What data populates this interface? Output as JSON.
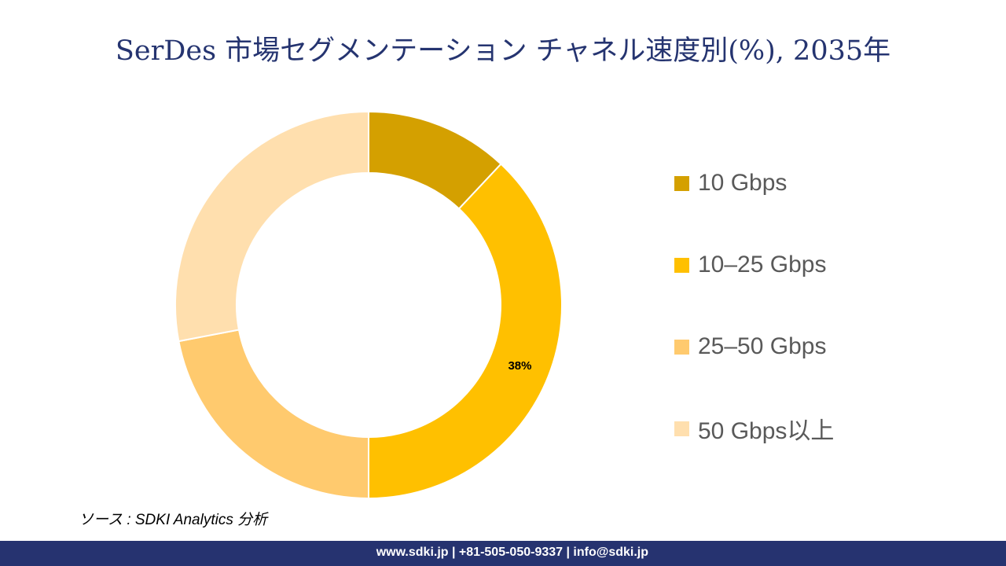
{
  "title": "SerDes 市場セグメンテーション チャネル速度別(%), 2035年",
  "chart_data": {
    "type": "pie",
    "donut": true,
    "title": "SerDes 市場セグメンテーション チャネル速度別(%), 2035年",
    "categories": [
      "10 Gbps",
      "10–25 Gbps",
      "25–50 Gbps",
      "50 Gbps以上"
    ],
    "values": [
      12,
      38,
      22,
      28
    ],
    "colors": [
      "#D4A000",
      "#FFC000",
      "#FFCA6E",
      "#FFDFAE"
    ],
    "data_labels": [
      "",
      "38%",
      "",
      ""
    ],
    "legend_position": "right"
  },
  "source": "ソース : SDKI Analytics 分析",
  "footer": "www.sdki.jp | +81-505-050-9337 | info@sdki.jp"
}
